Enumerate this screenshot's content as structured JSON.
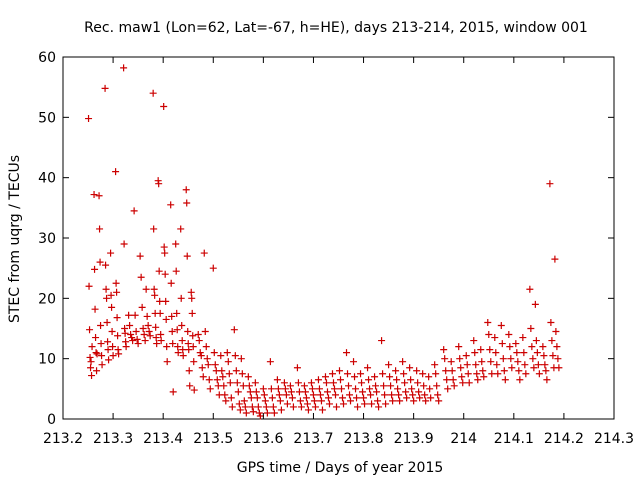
{
  "chart_data": {
    "type": "scatter",
    "title": "Rec. maw1 (Lon=62, Lat=-67, h=HE), days 213-214, 2015, window 001",
    "xlabel": "GPS time / Days of year 2015",
    "ylabel": "STEC from uqrg / TECUs",
    "xlim": [
      213.2,
      214.3
    ],
    "ylim": [
      0,
      60
    ],
    "xticks": [
      213.2,
      213.3,
      213.4,
      213.5,
      213.6,
      213.7,
      213.8,
      213.9,
      214,
      214.1,
      214.2,
      214.3
    ],
    "xtick_labels": [
      "213.2",
      "213.3",
      "213.4",
      "213.5",
      "213.6",
      "213.7",
      "213.8",
      "213.9",
      "214",
      "214.1",
      "214.2",
      "214.3"
    ],
    "yticks": [
      0,
      10,
      20,
      30,
      40,
      50,
      60
    ],
    "ytick_labels": [
      "0",
      "10",
      "20",
      "30",
      "40",
      "50",
      "60"
    ],
    "grid": false,
    "marker": "+",
    "color": "#cc0000",
    "points": [
      [
        213.251,
        49.8
      ],
      [
        213.252,
        22.0
      ],
      [
        213.253,
        14.8
      ],
      [
        213.254,
        10.2
      ],
      [
        213.255,
        8.5
      ],
      [
        213.256,
        9.5
      ],
      [
        213.257,
        7.2
      ],
      [
        213.258,
        12.0
      ],
      [
        213.262,
        37.2
      ],
      [
        213.263,
        24.8
      ],
      [
        213.264,
        18.2
      ],
      [
        213.265,
        13.5
      ],
      [
        213.266,
        11.0
      ],
      [
        213.267,
        8.0
      ],
      [
        213.268,
        10.8
      ],
      [
        213.272,
        37.0
      ],
      [
        213.273,
        31.5
      ],
      [
        213.274,
        26.0
      ],
      [
        213.275,
        15.5
      ],
      [
        213.276,
        12.5
      ],
      [
        213.277,
        10.5
      ],
      [
        213.278,
        9.0
      ],
      [
        213.284,
        54.8
      ],
      [
        213.285,
        25.5
      ],
      [
        213.286,
        21.5
      ],
      [
        213.287,
        20.0
      ],
      [
        213.288,
        16.0
      ],
      [
        213.289,
        12.8
      ],
      [
        213.29,
        11.5
      ],
      [
        213.291,
        9.8
      ],
      [
        213.295,
        27.5
      ],
      [
        213.296,
        20.5
      ],
      [
        213.297,
        18.5
      ],
      [
        213.298,
        14.5
      ],
      [
        213.299,
        12.0
      ],
      [
        213.3,
        10.5
      ],
      [
        213.305,
        41.0
      ],
      [
        213.306,
        22.5
      ],
      [
        213.307,
        21.0
      ],
      [
        213.308,
        16.8
      ],
      [
        213.309,
        13.8
      ],
      [
        213.31,
        11.5
      ],
      [
        213.311,
        10.8
      ],
      [
        213.321,
        58.2
      ],
      [
        213.322,
        29.0
      ],
      [
        213.323,
        15.0
      ],
      [
        213.324,
        14.2
      ],
      [
        213.325,
        12.8
      ],
      [
        213.326,
        12.0
      ],
      [
        213.331,
        17.2
      ],
      [
        213.333,
        15.5
      ],
      [
        213.335,
        14.0
      ],
      [
        213.337,
        13.5
      ],
      [
        213.339,
        13.0
      ],
      [
        213.342,
        34.5
      ],
      [
        213.344,
        17.2
      ],
      [
        213.346,
        14.5
      ],
      [
        213.348,
        13.2
      ],
      [
        213.35,
        12.5
      ],
      [
        213.354,
        27.0
      ],
      [
        213.356,
        23.5
      ],
      [
        213.358,
        18.5
      ],
      [
        213.36,
        15.0
      ],
      [
        213.362,
        14.0
      ],
      [
        213.364,
        13.0
      ],
      [
        213.366,
        21.5
      ],
      [
        213.368,
        17.0
      ],
      [
        213.37,
        15.5
      ],
      [
        213.372,
        14.5
      ],
      [
        213.374,
        13.8
      ],
      [
        213.38,
        54.0
      ],
      [
        213.381,
        31.5
      ],
      [
        213.382,
        21.5
      ],
      [
        213.383,
        20.5
      ],
      [
        213.384,
        17.5
      ],
      [
        213.385,
        15.2
      ],
      [
        213.386,
        13.5
      ],
      [
        213.387,
        12.5
      ],
      [
        213.39,
        39.5
      ],
      [
        213.391,
        39.0
      ],
      [
        213.392,
        24.5
      ],
      [
        213.393,
        19.5
      ],
      [
        213.394,
        17.5
      ],
      [
        213.395,
        14.0
      ],
      [
        213.396,
        13.0
      ],
      [
        213.401,
        51.8
      ],
      [
        213.402,
        28.5
      ],
      [
        213.403,
        27.5
      ],
      [
        213.404,
        24.0
      ],
      [
        213.405,
        19.5
      ],
      [
        213.406,
        16.5
      ],
      [
        213.407,
        12.0
      ],
      [
        213.408,
        9.5
      ],
      [
        213.415,
        35.5
      ],
      [
        213.416,
        22.5
      ],
      [
        213.417,
        17.0
      ],
      [
        213.418,
        14.5
      ],
      [
        213.419,
        12.5
      ],
      [
        213.42,
        4.5
      ],
      [
        213.425,
        29.0
      ],
      [
        213.426,
        24.5
      ],
      [
        213.427,
        17.5
      ],
      [
        213.428,
        14.8
      ],
      [
        213.429,
        12.0
      ],
      [
        213.43,
        11.0
      ],
      [
        213.435,
        31.5
      ],
      [
        213.436,
        20.0
      ],
      [
        213.437,
        15.5
      ],
      [
        213.438,
        13.0
      ],
      [
        213.439,
        11.5
      ],
      [
        213.44,
        10.5
      ],
      [
        213.446,
        38.0
      ],
      [
        213.447,
        35.8
      ],
      [
        213.448,
        27.0
      ],
      [
        213.449,
        14.5
      ],
      [
        213.45,
        12.5
      ],
      [
        213.451,
        11.5
      ],
      [
        213.452,
        8.0
      ],
      [
        213.453,
        5.5
      ],
      [
        213.456,
        21.0
      ],
      [
        213.457,
        20.0
      ],
      [
        213.458,
        17.5
      ],
      [
        213.459,
        13.8
      ],
      [
        213.46,
        12.0
      ],
      [
        213.461,
        9.5
      ],
      [
        213.462,
        4.8
      ],
      [
        213.47,
        14.0
      ],
      [
        213.472,
        13.0
      ],
      [
        213.474,
        11.0
      ],
      [
        213.476,
        10.5
      ],
      [
        213.478,
        8.5
      ],
      [
        213.48,
        7.0
      ],
      [
        213.482,
        27.5
      ],
      [
        213.484,
        14.5
      ],
      [
        213.486,
        12.0
      ],
      [
        213.488,
        10.0
      ],
      [
        213.49,
        9.0
      ],
      [
        213.492,
        6.5
      ],
      [
        213.494,
        5.0
      ],
      [
        213.5,
        25.0
      ],
      [
        213.502,
        11.0
      ],
      [
        213.504,
        9.0
      ],
      [
        213.506,
        8.0
      ],
      [
        213.508,
        6.5
      ],
      [
        213.51,
        5.5
      ],
      [
        213.512,
        4.0
      ],
      [
        213.515,
        10.5
      ],
      [
        213.517,
        8.0
      ],
      [
        213.519,
        7.0
      ],
      [
        213.521,
        5.5
      ],
      [
        213.523,
        4.0
      ],
      [
        213.525,
        3.0
      ],
      [
        213.528,
        11.0
      ],
      [
        213.53,
        9.5
      ],
      [
        213.532,
        7.5
      ],
      [
        213.534,
        6.0
      ],
      [
        213.536,
        3.5
      ],
      [
        213.538,
        2.0
      ],
      [
        213.542,
        14.8
      ],
      [
        213.544,
        10.5
      ],
      [
        213.546,
        8.0
      ],
      [
        213.548,
        6.0
      ],
      [
        213.55,
        4.5
      ],
      [
        213.552,
        2.5
      ],
      [
        213.554,
        1.5
      ],
      [
        213.556,
        10.0
      ],
      [
        213.558,
        7.5
      ],
      [
        213.56,
        5.5
      ],
      [
        213.562,
        3.0
      ],
      [
        213.564,
        2.0
      ],
      [
        213.566,
        1.0
      ],
      [
        213.57,
        7.0
      ],
      [
        213.572,
        5.5
      ],
      [
        213.574,
        4.5
      ],
      [
        213.576,
        3.5
      ],
      [
        213.578,
        2.0
      ],
      [
        213.58,
        1.2
      ],
      [
        213.584,
        6.0
      ],
      [
        213.586,
        4.5
      ],
      [
        213.588,
        3.5
      ],
      [
        213.59,
        2.0
      ],
      [
        213.592,
        1.0
      ],
      [
        213.594,
        0.5
      ],
      [
        213.6,
        5.0
      ],
      [
        213.602,
        4.0
      ],
      [
        213.604,
        3.0
      ],
      [
        213.606,
        2.0
      ],
      [
        213.608,
        1.0
      ],
      [
        213.614,
        9.5
      ],
      [
        213.616,
        5.0
      ],
      [
        213.618,
        3.5
      ],
      [
        213.62,
        2.0
      ],
      [
        213.622,
        1.0
      ],
      [
        213.628,
        6.5
      ],
      [
        213.63,
        5.0
      ],
      [
        213.632,
        4.0
      ],
      [
        213.634,
        3.0
      ],
      [
        213.636,
        1.5
      ],
      [
        213.642,
        6.0
      ],
      [
        213.644,
        5.0
      ],
      [
        213.646,
        4.0
      ],
      [
        213.648,
        2.5
      ],
      [
        213.654,
        5.5
      ],
      [
        213.656,
        4.5
      ],
      [
        213.658,
        3.5
      ],
      [
        213.66,
        2.0
      ],
      [
        213.668,
        8.5
      ],
      [
        213.67,
        6.0
      ],
      [
        213.672,
        4.5
      ],
      [
        213.674,
        3.0
      ],
      [
        213.676,
        2.0
      ],
      [
        213.682,
        5.5
      ],
      [
        213.684,
        4.5
      ],
      [
        213.686,
        3.5
      ],
      [
        213.688,
        2.5
      ],
      [
        213.69,
        1.5
      ],
      [
        213.696,
        6.0
      ],
      [
        213.698,
        5.0
      ],
      [
        213.7,
        4.0
      ],
      [
        213.702,
        3.0
      ],
      [
        213.704,
        2.0
      ],
      [
        213.71,
        6.5
      ],
      [
        213.712,
        5.0
      ],
      [
        213.714,
        4.0
      ],
      [
        213.716,
        3.0
      ],
      [
        213.718,
        1.5
      ],
      [
        213.724,
        7.0
      ],
      [
        213.726,
        6.0
      ],
      [
        213.728,
        4.5
      ],
      [
        213.73,
        3.5
      ],
      [
        213.732,
        2.5
      ],
      [
        213.738,
        7.5
      ],
      [
        213.74,
        6.0
      ],
      [
        213.742,
        5.0
      ],
      [
        213.744,
        4.0
      ],
      [
        213.746,
        2.0
      ],
      [
        213.752,
        8.0
      ],
      [
        213.754,
        6.5
      ],
      [
        213.756,
        5.0
      ],
      [
        213.758,
        3.5
      ],
      [
        213.76,
        2.5
      ],
      [
        213.766,
        11.0
      ],
      [
        213.768,
        7.5
      ],
      [
        213.77,
        5.5
      ],
      [
        213.772,
        4.0
      ],
      [
        213.774,
        3.0
      ],
      [
        213.78,
        9.5
      ],
      [
        213.782,
        7.0
      ],
      [
        213.784,
        5.0
      ],
      [
        213.786,
        3.5
      ],
      [
        213.788,
        2.0
      ],
      [
        213.794,
        7.5
      ],
      [
        213.796,
        6.0
      ],
      [
        213.798,
        4.5
      ],
      [
        213.8,
        3.5
      ],
      [
        213.802,
        2.5
      ],
      [
        213.808,
        8.5
      ],
      [
        213.81,
        6.5
      ],
      [
        213.812,
        5.0
      ],
      [
        213.814,
        4.0
      ],
      [
        213.816,
        2.5
      ],
      [
        213.822,
        7.0
      ],
      [
        213.824,
        5.5
      ],
      [
        213.826,
        4.5
      ],
      [
        213.828,
        3.0
      ],
      [
        213.83,
        2.0
      ],
      [
        213.836,
        13.0
      ],
      [
        213.838,
        7.5
      ],
      [
        213.84,
        5.5
      ],
      [
        213.842,
        4.0
      ],
      [
        213.844,
        2.5
      ],
      [
        213.85,
        9.0
      ],
      [
        213.852,
        7.0
      ],
      [
        213.854,
        5.5
      ],
      [
        213.856,
        4.0
      ],
      [
        213.858,
        3.0
      ],
      [
        213.864,
        8.0
      ],
      [
        213.866,
        6.5
      ],
      [
        213.868,
        5.0
      ],
      [
        213.87,
        4.0
      ],
      [
        213.872,
        3.0
      ],
      [
        213.878,
        9.5
      ],
      [
        213.88,
        7.5
      ],
      [
        213.882,
        6.0
      ],
      [
        213.884,
        4.5
      ],
      [
        213.886,
        3.5
      ],
      [
        213.892,
        8.5
      ],
      [
        213.894,
        6.5
      ],
      [
        213.896,
        5.0
      ],
      [
        213.898,
        4.0
      ],
      [
        213.9,
        3.0
      ],
      [
        213.906,
        8.0
      ],
      [
        213.908,
        6.0
      ],
      [
        213.91,
        4.5
      ],
      [
        213.912,
        3.5
      ],
      [
        213.918,
        7.5
      ],
      [
        213.92,
        5.5
      ],
      [
        213.922,
        4.0
      ],
      [
        213.924,
        3.0
      ],
      [
        213.93,
        7.0
      ],
      [
        213.932,
        5.0
      ],
      [
        213.934,
        3.5
      ],
      [
        213.942,
        9.0
      ],
      [
        213.944,
        7.5
      ],
      [
        213.946,
        5.5
      ],
      [
        213.948,
        4.0
      ],
      [
        213.95,
        3.0
      ],
      [
        213.96,
        11.5
      ],
      [
        213.962,
        10.0
      ],
      [
        213.964,
        8.0
      ],
      [
        213.966,
        6.5
      ],
      [
        213.968,
        5.0
      ],
      [
        213.975,
        9.5
      ],
      [
        213.977,
        8.0
      ],
      [
        213.979,
        6.5
      ],
      [
        213.981,
        5.5
      ],
      [
        213.99,
        12.0
      ],
      [
        213.992,
        10.0
      ],
      [
        213.994,
        8.5
      ],
      [
        213.996,
        7.0
      ],
      [
        213.998,
        6.0
      ],
      [
        214.005,
        10.5
      ],
      [
        214.007,
        9.0
      ],
      [
        214.009,
        7.5
      ],
      [
        214.011,
        6.0
      ],
      [
        214.02,
        13.0
      ],
      [
        214.022,
        11.0
      ],
      [
        214.024,
        9.0
      ],
      [
        214.026,
        7.5
      ],
      [
        214.028,
        6.5
      ],
      [
        214.034,
        11.5
      ],
      [
        214.036,
        9.5
      ],
      [
        214.038,
        8.0
      ],
      [
        214.04,
        7.0
      ],
      [
        214.048,
        16.0
      ],
      [
        214.05,
        14.0
      ],
      [
        214.052,
        11.5
      ],
      [
        214.054,
        9.5
      ],
      [
        214.056,
        7.5
      ],
      [
        214.062,
        13.5
      ],
      [
        214.064,
        11.0
      ],
      [
        214.066,
        9.0
      ],
      [
        214.068,
        7.5
      ],
      [
        214.075,
        15.5
      ],
      [
        214.077,
        12.5
      ],
      [
        214.079,
        10.0
      ],
      [
        214.081,
        8.0
      ],
      [
        214.083,
        6.5
      ],
      [
        214.09,
        14.0
      ],
      [
        214.092,
        12.0
      ],
      [
        214.094,
        10.0
      ],
      [
        214.096,
        8.5
      ],
      [
        214.104,
        12.5
      ],
      [
        214.106,
        11.0
      ],
      [
        214.108,
        9.5
      ],
      [
        214.11,
        8.0
      ],
      [
        214.112,
        6.5
      ],
      [
        214.118,
        13.5
      ],
      [
        214.12,
        11.0
      ],
      [
        214.122,
        9.0
      ],
      [
        214.124,
        7.5
      ],
      [
        214.132,
        21.5
      ],
      [
        214.134,
        15.0
      ],
      [
        214.136,
        12.0
      ],
      [
        214.138,
        10.0
      ],
      [
        214.14,
        8.5
      ],
      [
        214.143,
        19.0
      ],
      [
        214.145,
        13.0
      ],
      [
        214.147,
        11.0
      ],
      [
        214.149,
        9.0
      ],
      [
        214.151,
        7.5
      ],
      [
        214.158,
        12.0
      ],
      [
        214.16,
        10.5
      ],
      [
        214.162,
        9.0
      ],
      [
        214.164,
        8.0
      ],
      [
        214.166,
        6.5
      ],
      [
        214.172,
        39.0
      ],
      [
        214.174,
        16.0
      ],
      [
        214.176,
        13.0
      ],
      [
        214.178,
        10.5
      ],
      [
        214.18,
        8.5
      ],
      [
        214.182,
        26.5
      ],
      [
        214.184,
        14.5
      ],
      [
        214.186,
        12.0
      ],
      [
        214.188,
        10.0
      ],
      [
        214.19,
        8.5
      ]
    ]
  }
}
